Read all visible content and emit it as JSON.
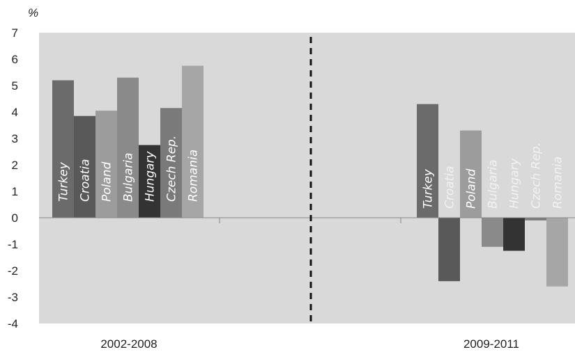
{
  "chart_data": {
    "type": "bar",
    "unit_label": "%",
    "ylim": [
      -4,
      7
    ],
    "yticks": [
      7,
      6,
      5,
      4,
      3,
      2,
      1,
      0,
      -1,
      -2,
      -3,
      -4
    ],
    "grid": false,
    "legend": "none",
    "categories": [
      "2002-2008",
      "2009-2011"
    ],
    "series": [
      {
        "name": "Turkey",
        "values": [
          5.2,
          4.3
        ],
        "color": "#6b6b6b"
      },
      {
        "name": "Croatia",
        "values": [
          3.85,
          -2.4
        ],
        "color": "#595959"
      },
      {
        "name": "Poland",
        "values": [
          4.05,
          3.3
        ],
        "color": "#9c9c9c"
      },
      {
        "name": "Bulgaria",
        "values": [
          5.3,
          -1.1
        ],
        "color": "#8a8a8a"
      },
      {
        "name": "Hungary",
        "values": [
          2.75,
          -1.25
        ],
        "color": "#333333"
      },
      {
        "name": "Czech Rep.",
        "values": [
          4.15,
          -0.1
        ],
        "color": "#7a7a7a"
      },
      {
        "name": "Romania",
        "values": [
          5.75,
          -2.6
        ],
        "color": "#a6a6a6"
      }
    ],
    "divider": "dashed vertical line between periods",
    "plot_background": "#d9d9d9"
  }
}
